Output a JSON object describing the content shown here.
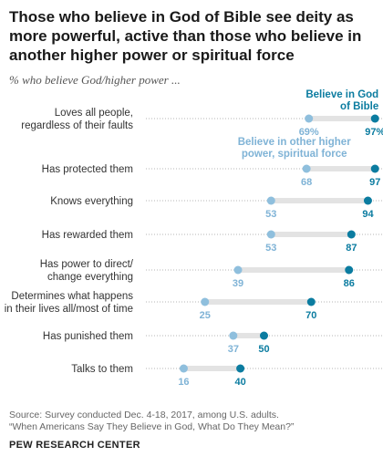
{
  "title": "Those who believe in God of Bible see deity as more powerful, active than those who believe in another higher power or spiritual force",
  "subtitle": "% who believe God/higher power ...",
  "source_line1": "Source: Survey conducted Dec. 4-18, 2017, among U.S. adults.",
  "source_line2": "“When Americans Say They Believe in God, What Do They Mean?”",
  "brand": "PEW RESEARCH CENTER",
  "colors": {
    "bible": "#0b7ca0",
    "other": "#8fbfdd",
    "bar": "#e3e3e3",
    "label_other": "#7fb3d6"
  },
  "chart_data": {
    "type": "dot",
    "categories": [
      [
        "Loves all people,",
        "regardless of their faults"
      ],
      [
        "Has protected them"
      ],
      [
        "Knows everything"
      ],
      [
        "Has rewarded them"
      ],
      [
        "Has power to direct/",
        "change everything"
      ],
      [
        "Determines what happens",
        "in their lives all/most of time"
      ],
      [
        "Has punished them"
      ],
      [
        "Talks to them"
      ]
    ],
    "series": [
      {
        "name": "Believe in other higher power, spiritual force",
        "name_lines": [
          "Believe in other higher",
          "power, spiritual force"
        ],
        "values": [
          69,
          68,
          53,
          53,
          39,
          25,
          37,
          16
        ],
        "labels": [
          "69%",
          "68",
          "53",
          "53",
          "39",
          "25",
          "37",
          "16"
        ]
      },
      {
        "name": "Believe in God of Bible",
        "name_lines": [
          "Believe in God",
          "of Bible"
        ],
        "values": [
          97,
          97,
          94,
          87,
          86,
          70,
          50,
          40
        ],
        "labels": [
          "97%",
          "97",
          "94",
          "87",
          "86",
          "70",
          "50",
          "40"
        ]
      }
    ],
    "xlim": [
      0,
      100
    ]
  }
}
